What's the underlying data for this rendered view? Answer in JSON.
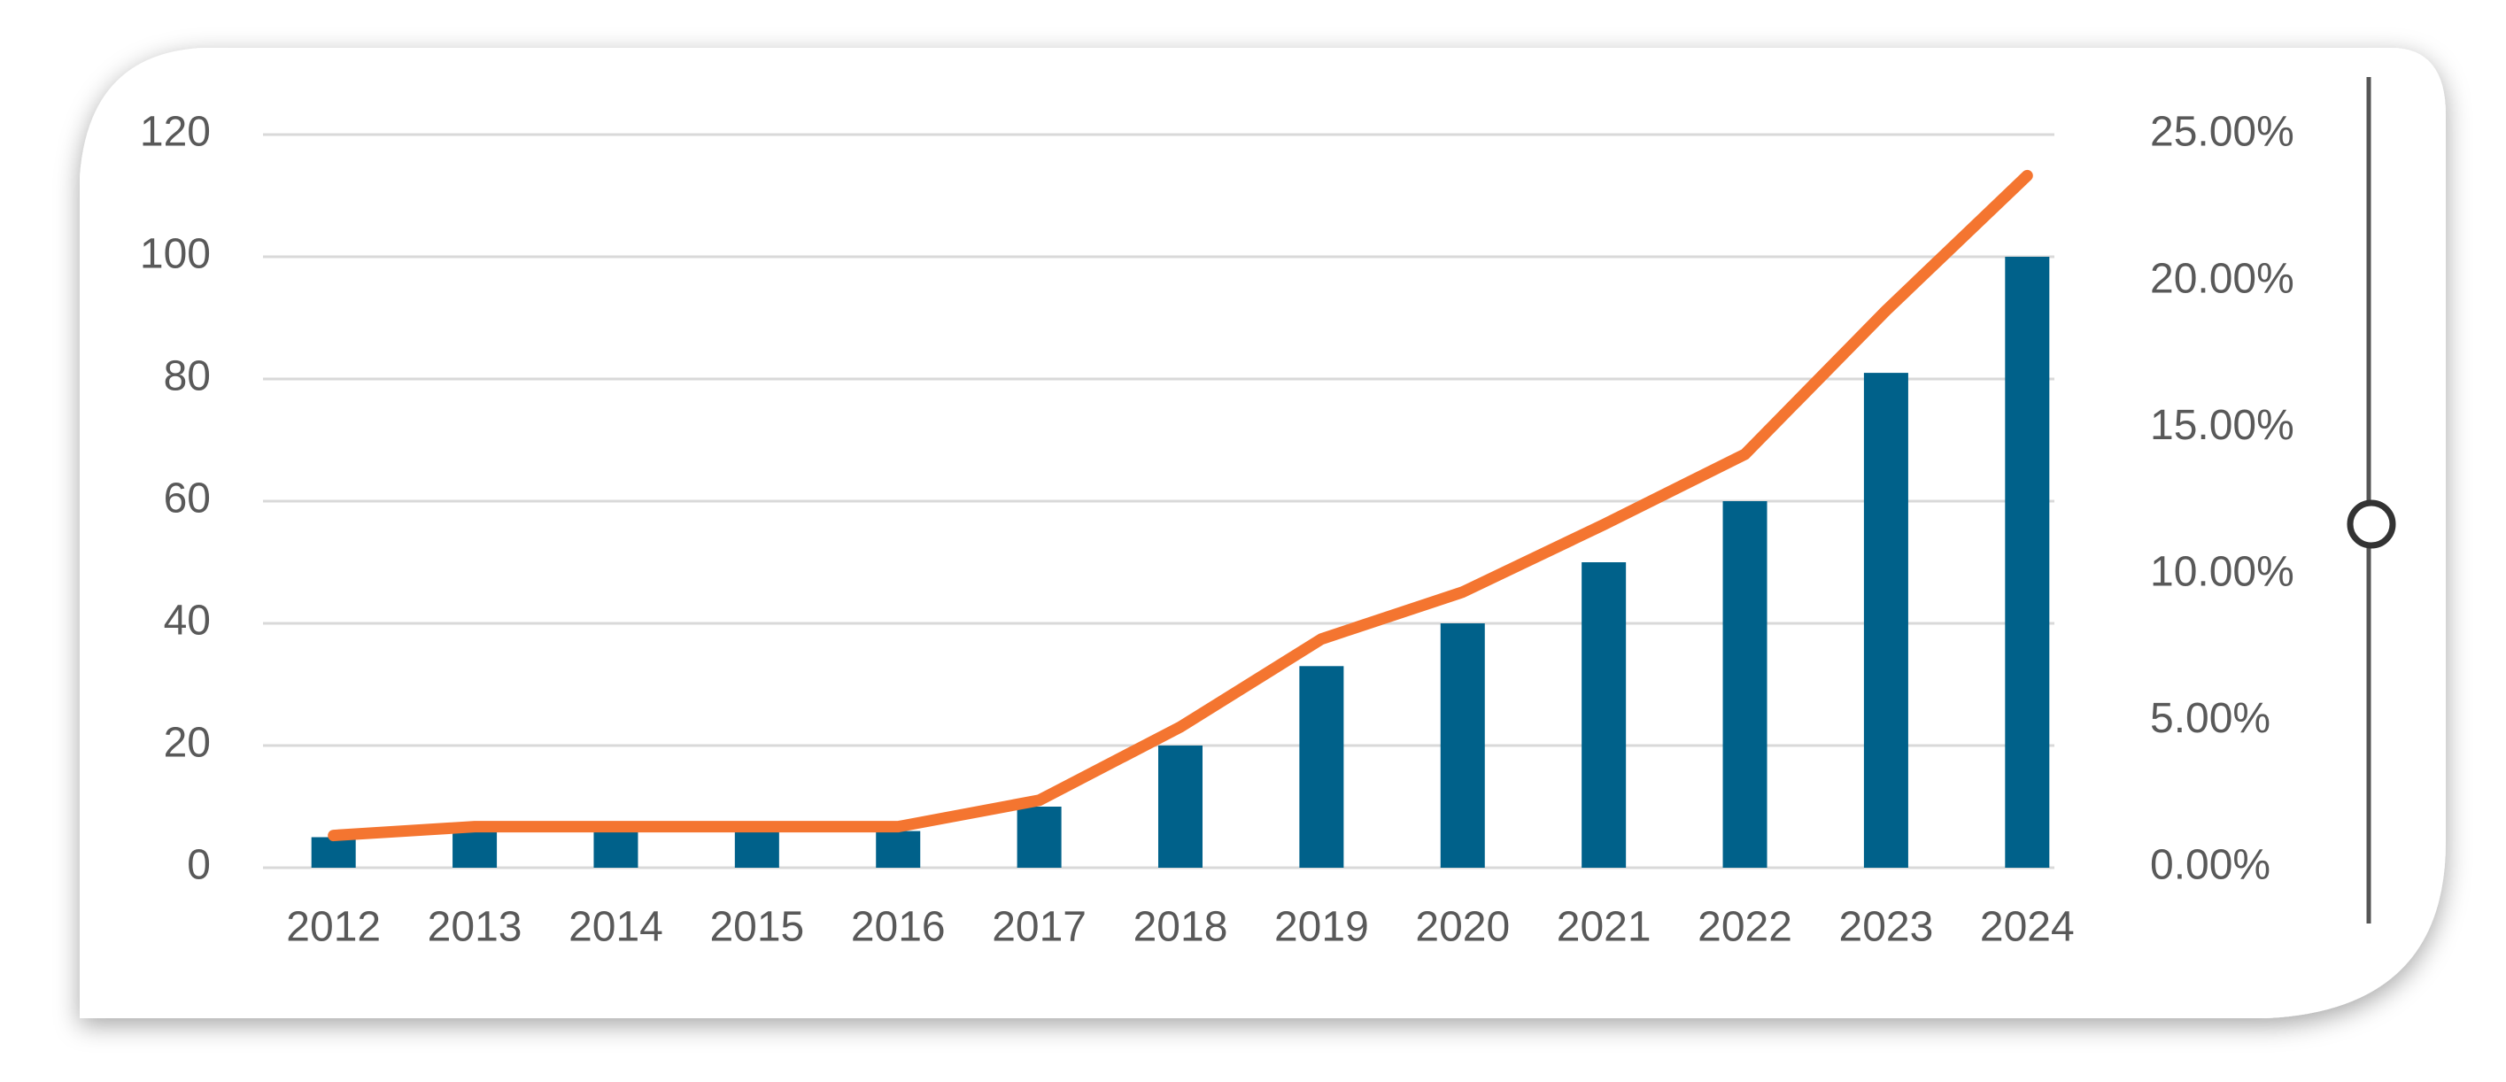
{
  "chart_data": {
    "type": "bar",
    "categories": [
      "2012",
      "2013",
      "2014",
      "2015",
      "2016",
      "2017",
      "2018",
      "2019",
      "2020",
      "2021",
      "2022",
      "2023",
      "2024"
    ],
    "series": [
      {
        "type": "bar",
        "color": "#00618a",
        "values": [
          5,
          6,
          6,
          6,
          6,
          10,
          20,
          33,
          40,
          50,
          60,
          81,
          100
        ]
      },
      {
        "type": "line",
        "color": "#f47530",
        "axis": "y2",
        "values": [
          1.1,
          1.4,
          1.4,
          1.4,
          1.4,
          2.3,
          4.8,
          7.8,
          9.4,
          11.7,
          14.1,
          19.0,
          23.6
        ]
      }
    ],
    "ylim": [
      0,
      120
    ],
    "yticks": [
      0,
      20,
      40,
      60,
      80,
      100,
      120
    ],
    "y2lim": [
      0,
      25
    ],
    "y2ticks": [
      {
        "value": 0,
        "label": "0.00%"
      },
      {
        "value": 5,
        "label": "5.00%"
      },
      {
        "value": 10,
        "label": "10.00%"
      },
      {
        "value": 15,
        "label": "15.00%"
      },
      {
        "value": 20,
        "label": "20.00%"
      },
      {
        "value": 25,
        "label": "25.00%"
      }
    ],
    "grid": true
  }
}
